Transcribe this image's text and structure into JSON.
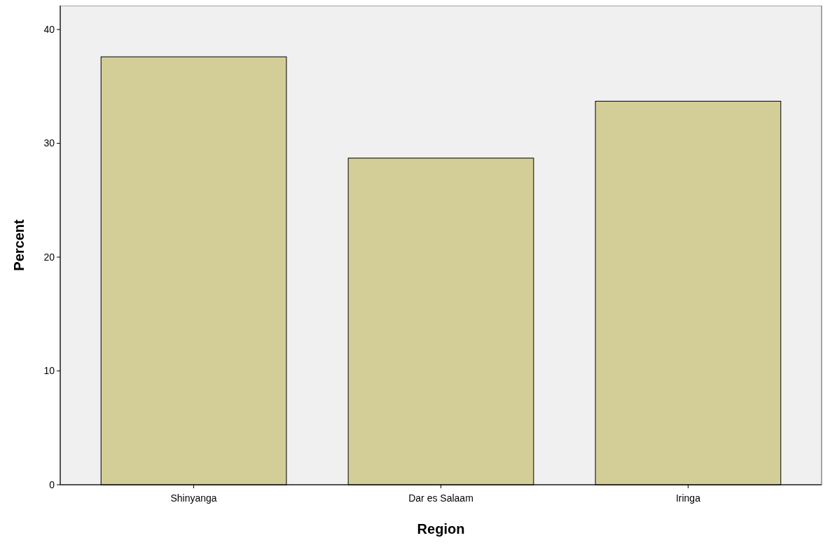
{
  "chart_data": {
    "type": "bar",
    "xlabel": "Region",
    "ylabel": "Percent",
    "categories": [
      "Shinyanga",
      "Dar es Salaam",
      "Iringa"
    ],
    "values": [
      37.6,
      28.7,
      33.7
    ],
    "color": "#d3ce97",
    "ylim": [
      0,
      42.1
    ],
    "yticks": [
      0,
      10,
      20,
      30,
      40
    ],
    "grid": false
  }
}
